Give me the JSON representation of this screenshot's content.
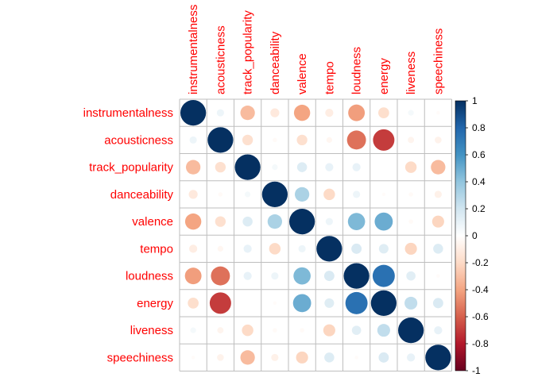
{
  "chart_data": {
    "type": "heatmap",
    "subtype": "correlation-matrix-circles",
    "variables": [
      "instrumentalness",
      "acousticness",
      "track_popularity",
      "danceability",
      "valence",
      "tempo",
      "loudness",
      "energy",
      "liveness",
      "speechiness"
    ],
    "matrix": [
      [
        1.0,
        0.08,
        -0.32,
        -0.12,
        -0.4,
        -0.1,
        -0.42,
        -0.18,
        0.05,
        -0.02
      ],
      [
        0.08,
        1.0,
        -0.17,
        -0.03,
        -0.17,
        -0.05,
        -0.55,
        -0.7,
        -0.06,
        -0.07
      ],
      [
        -0.32,
        -0.17,
        1.0,
        0.05,
        0.15,
        0.1,
        0.1,
        0.0,
        -0.2,
        -0.32
      ],
      [
        -0.12,
        -0.03,
        0.05,
        1.0,
        0.32,
        -0.2,
        0.08,
        -0.02,
        -0.03,
        -0.08
      ],
      [
        -0.4,
        -0.17,
        0.15,
        0.32,
        1.0,
        0.08,
        0.45,
        0.5,
        -0.03,
        -0.22
      ],
      [
        -0.1,
        -0.05,
        0.1,
        -0.2,
        0.08,
        1.0,
        0.16,
        0.14,
        -0.22,
        0.15
      ],
      [
        -0.42,
        -0.55,
        0.1,
        0.08,
        0.45,
        0.16,
        1.0,
        0.75,
        0.13,
        -0.02
      ],
      [
        -0.18,
        -0.7,
        0.0,
        -0.02,
        0.5,
        0.14,
        0.75,
        1.0,
        0.25,
        0.16
      ],
      [
        0.05,
        -0.06,
        -0.2,
        -0.03,
        -0.03,
        -0.22,
        0.13,
        0.25,
        1.0,
        0.1
      ],
      [
        -0.02,
        -0.07,
        -0.32,
        -0.08,
        -0.22,
        0.15,
        -0.02,
        0.16,
        0.1,
        1.0
      ]
    ],
    "colorbar": {
      "min": -1,
      "max": 1,
      "tick_values": [
        1,
        0.8,
        0.6,
        0.4,
        0.2,
        0,
        -0.2,
        -0.4,
        -0.6,
        -0.8,
        -1
      ],
      "tick_labels": [
        "1",
        "0.8",
        "0.6",
        "0.4",
        "0.2",
        "0",
        "-0.2",
        "-0.4",
        "-0.6",
        "-0.8",
        "-1"
      ],
      "colors_high_to_low": [
        "#053061",
        "#2166ac",
        "#4393c3",
        "#92c5de",
        "#d1e5f0",
        "#ffffff",
        "#fddbc7",
        "#f4a582",
        "#d6604d",
        "#b2182b",
        "#67001f"
      ]
    },
    "label_color": "#ff0000",
    "grid_color": "#bebebe",
    "title": "",
    "xlabel": "",
    "ylabel": ""
  }
}
